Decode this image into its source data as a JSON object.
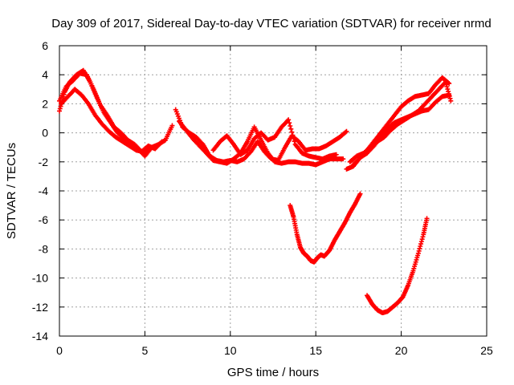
{
  "chart_data": {
    "type": "scatter",
    "title": "Day 309 of 2017, Sidereal Day-to-day VTEC variation (SDTVAR) for receiver nrmd",
    "xlabel": "GPS time / hours",
    "ylabel": "SDTVAR / TECUs",
    "xlim": [
      0,
      25
    ],
    "ylim": [
      -14,
      6
    ],
    "xticks": [
      0,
      5,
      10,
      15,
      20,
      25
    ],
    "yticks": [
      -14,
      -12,
      -10,
      -8,
      -6,
      -4,
      -2,
      0,
      2,
      4,
      6
    ],
    "grid": true,
    "legend": "none",
    "marker": "+",
    "color": "#ff0000",
    "series": [
      {
        "x": [
          0.0,
          0.3,
          0.6,
          1.0,
          1.4,
          1.8,
          2.2,
          2.6,
          3.0,
          3.4,
          3.8,
          4.2,
          4.6,
          5.0,
          5.4,
          5.8,
          6.2,
          6.6
        ],
        "y": [
          1.5,
          2.8,
          3.5,
          4.0,
          4.3,
          3.5,
          2.4,
          1.4,
          0.7,
          0.0,
          -0.4,
          -0.8,
          -1.1,
          -1.6,
          -1.0,
          -0.8,
          -0.5,
          0.5
        ]
      },
      {
        "x": [
          0.0,
          0.4,
          0.8,
          1.2,
          1.6,
          2.0,
          2.4,
          2.8,
          3.2,
          3.6,
          4.0,
          4.4,
          4.8,
          5.2,
          5.6,
          6.0
        ],
        "y": [
          2.2,
          3.2,
          3.6,
          4.1,
          4.0,
          3.0,
          1.9,
          1.2,
          0.4,
          0.0,
          -0.5,
          -0.8,
          -1.3,
          -0.9,
          -1.1,
          -0.6
        ]
      },
      {
        "x": [
          0.1,
          0.5,
          0.9,
          1.3,
          1.7,
          2.1,
          2.5,
          2.9,
          3.3,
          3.7,
          4.1,
          4.5,
          4.9,
          5.3
        ],
        "y": [
          2.0,
          2.5,
          3.0,
          2.6,
          2.0,
          1.2,
          0.6,
          0.1,
          -0.3,
          -0.6,
          -0.9,
          -1.2,
          -1.3,
          -1.1
        ]
      },
      {
        "x": [
          6.8,
          7.2,
          7.6,
          8.0,
          8.4,
          8.8,
          9.2,
          9.6,
          10.0,
          10.4,
          10.8,
          11.2,
          11.6,
          12.0,
          12.4,
          12.8,
          13.2,
          13.6,
          14.0,
          14.4,
          14.8,
          15.2,
          15.6,
          16.0,
          16.4,
          16.8
        ],
        "y": [
          1.6,
          0.4,
          0.0,
          -0.3,
          -0.8,
          -1.6,
          -1.9,
          -2.0,
          -1.9,
          -2.0,
          -1.8,
          -1.3,
          -0.6,
          -1.3,
          -1.8,
          -1.9,
          -1.0,
          -0.2,
          -0.6,
          -1.2,
          -1.1,
          -1.1,
          -0.9,
          -0.6,
          -0.3,
          0.1
        ]
      },
      {
        "x": [
          7.0,
          7.4,
          7.8,
          8.2,
          8.6,
          9.0,
          9.4,
          9.8,
          10.2,
          10.6,
          11.0,
          11.4,
          11.8,
          12.2,
          12.6,
          13.0,
          13.4,
          13.8,
          14.2,
          14.6,
          15.0,
          15.4,
          15.8,
          16.2,
          16.6
        ],
        "y": [
          0.8,
          0.2,
          -0.4,
          -0.9,
          -1.4,
          -1.9,
          -2.0,
          -2.1,
          -1.8,
          -1.4,
          -0.6,
          0.4,
          -0.5,
          -1.4,
          -2.0,
          -2.1,
          -2.0,
          -2.0,
          -2.1,
          -2.1,
          -2.2,
          -2.0,
          -1.8,
          -1.8,
          -1.8
        ]
      },
      {
        "x": [
          9.0,
          9.4,
          9.8,
          10.2,
          10.6,
          11.0,
          11.4,
          11.8,
          12.2,
          12.6,
          13.0,
          13.4,
          13.8,
          14.2,
          14.6,
          15.0,
          15.4,
          15.8,
          16.2
        ],
        "y": [
          -1.2,
          -0.6,
          -0.2,
          -0.8,
          -1.5,
          -1.2,
          -0.4,
          0.0,
          -0.5,
          -0.3,
          0.4,
          0.9,
          -0.8,
          -1.4,
          -1.6,
          -1.7,
          -1.8,
          -1.6,
          -1.5
        ]
      },
      {
        "x": [
          16.8,
          17.2,
          17.6,
          18.0,
          18.4,
          18.8,
          19.2,
          19.6,
          20.0,
          20.4,
          20.8,
          21.2,
          21.6,
          22.0,
          22.4,
          22.8
        ],
        "y": [
          -2.5,
          -2.3,
          -1.7,
          -1.2,
          -0.6,
          0.0,
          0.6,
          1.2,
          1.8,
          2.2,
          2.5,
          2.6,
          2.7,
          3.3,
          3.8,
          3.4
        ]
      },
      {
        "x": [
          17.0,
          17.4,
          17.8,
          18.2,
          18.6,
          19.0,
          19.4,
          19.8,
          20.2,
          20.6,
          21.0,
          21.4,
          21.8,
          22.2,
          22.6,
          22.9
        ],
        "y": [
          -2.0,
          -1.6,
          -1.4,
          -1.0,
          -0.6,
          -0.3,
          0.2,
          0.6,
          0.9,
          1.2,
          1.5,
          2.0,
          2.5,
          3.0,
          3.5,
          2.2
        ]
      },
      {
        "x": [
          17.2,
          17.6,
          18.0,
          18.4,
          18.8,
          19.2,
          19.6,
          20.0,
          20.4,
          20.8,
          21.2,
          21.6,
          22.0,
          22.4,
          22.8
        ],
        "y": [
          -2.2,
          -1.7,
          -1.4,
          -0.9,
          -0.3,
          0.3,
          0.7,
          0.9,
          1.1,
          1.3,
          1.5,
          1.6,
          2.1,
          2.5,
          2.6
        ]
      },
      {
        "x": [
          13.5,
          13.7,
          13.9,
          14.1,
          14.3,
          14.5,
          14.7,
          14.9,
          15.1,
          15.3,
          15.5,
          15.8,
          16.1,
          16.4,
          16.7,
          17.0,
          17.3,
          17.6
        ],
        "y": [
          -5.0,
          -5.8,
          -7.0,
          -7.9,
          -8.3,
          -8.5,
          -8.8,
          -8.9,
          -8.6,
          -8.4,
          -8.5,
          -8.1,
          -7.4,
          -6.8,
          -6.2,
          -5.5,
          -4.9,
          -4.2
        ]
      },
      {
        "x": [
          18.0,
          18.3,
          18.6,
          18.9,
          19.2,
          19.5,
          19.8,
          20.1,
          20.4,
          20.7,
          21.0,
          21.3,
          21.5
        ],
        "y": [
          -11.2,
          -11.8,
          -12.2,
          -12.4,
          -12.3,
          -12.0,
          -11.7,
          -11.3,
          -10.5,
          -9.5,
          -8.3,
          -7.0,
          -5.9
        ]
      }
    ]
  }
}
